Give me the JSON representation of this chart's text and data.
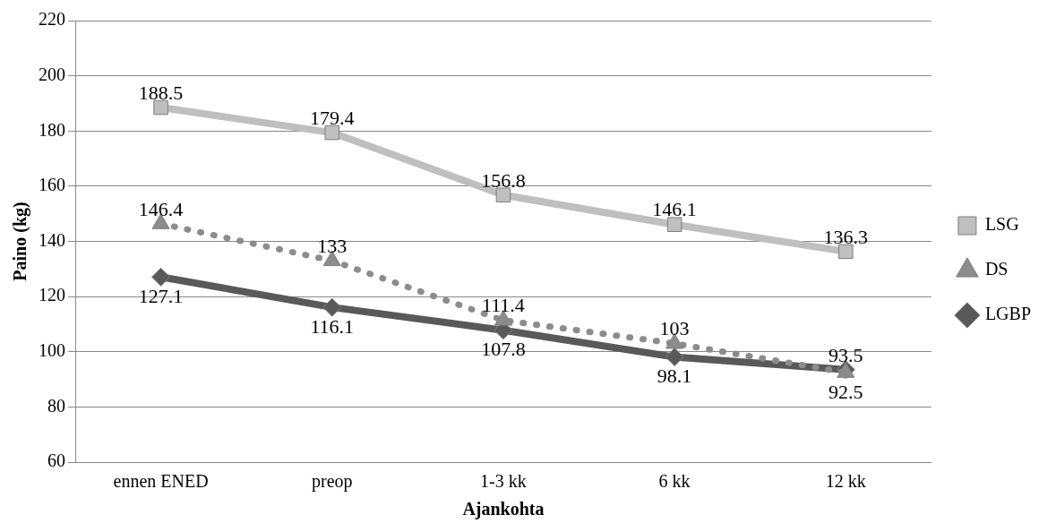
{
  "chart_data": {
    "type": "line",
    "xlabel": "Ajankohta",
    "ylabel": "Paino (kg)",
    "categories": [
      "ennen ENED",
      "preop",
      "1-3 kk",
      "6 kk",
      "12 kk"
    ],
    "series": [
      {
        "name": "LSG",
        "color": "#bfbfbf",
        "values": [
          188.5,
          179.4,
          156.8,
          146.1,
          136.3
        ],
        "marker": "square",
        "line_style": "solid"
      },
      {
        "name": "DS",
        "color": "#8c8c8c",
        "values": [
          146.4,
          133,
          111.4,
          103,
          92.5
        ],
        "marker": "triangle",
        "line_style": "dotted"
      },
      {
        "name": "LGBP",
        "color": "#595959",
        "values": [
          127.1,
          116.1,
          107.8,
          98.1,
          93.5
        ],
        "marker": "diamond",
        "line_style": "solid"
      }
    ],
    "ylim": [
      60,
      220
    ],
    "yticks": [
      60,
      80,
      100,
      120,
      140,
      160,
      180,
      200,
      220
    ],
    "grid": "y",
    "legend": "right",
    "data_labels": true
  }
}
